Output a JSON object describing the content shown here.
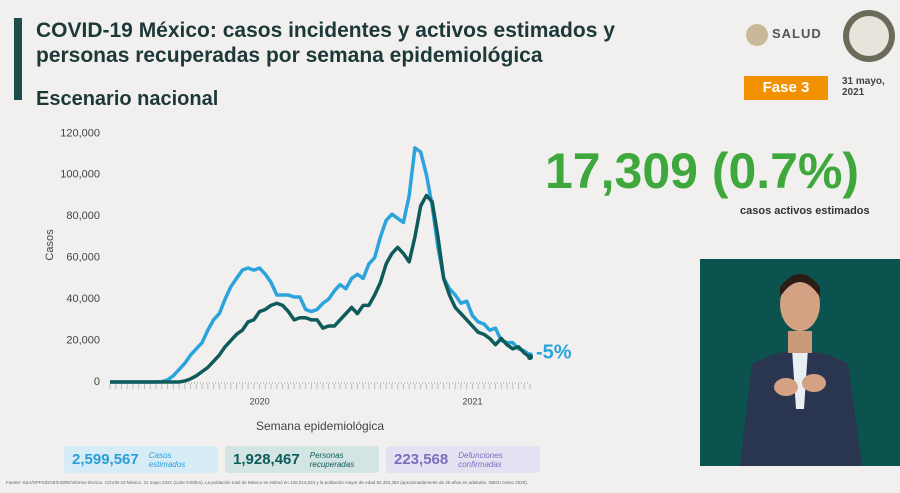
{
  "header": {
    "title": "COVID-19 México: casos incidentes y activos estimados y personas recuperadas por semana epidemiológica",
    "subtitle": "Escenario nacional",
    "ministry": "SALUD",
    "phase": "Fase 3",
    "date": "31 mayo, 2021"
  },
  "highlight": {
    "value": "17,309 (0.7%)",
    "caption": "casos activos estimados"
  },
  "stats": [
    {
      "value": "2,599,567",
      "label": "Casos estimados"
    },
    {
      "value": "1,928,467",
      "label": "Personas recuperadas"
    },
    {
      "value": "223,568",
      "label": "Defunciones confirmadas"
    }
  ],
  "footnote": "Fuente: SSA/SPPS/DGE/InDRE/Informe técnico. COVID-19 México. 31 mayo 2021 (corte 9:00hrs). La población total de México se estimó en 126,014,024 y la población mayor de edad 92,453,383 (aproximadamente de 20 años en adelante, INEGI censo 2020).",
  "chart_data": {
    "type": "line",
    "ylabel": "Casos",
    "xlabel": "Semana epidemiológica",
    "annotation": "-5%",
    "categories": [
      null,
      null,
      null,
      null,
      null,
      null,
      null,
      null,
      null,
      null,
      null,
      null,
      null,
      null,
      null,
      null,
      null,
      null,
      null,
      null,
      null,
      null,
      null,
      null,
      null,
      null,
      "2020",
      null,
      null,
      null,
      null,
      null,
      null,
      null,
      null,
      null,
      null,
      null,
      null,
      null,
      null,
      null,
      null,
      null,
      null,
      null,
      null,
      null,
      null,
      null,
      null,
      null,
      null,
      null,
      null,
      null,
      null,
      null,
      null,
      null,
      null,
      null,
      null,
      "2021",
      null,
      null,
      null,
      null,
      null,
      null,
      null,
      null,
      null,
      null
    ],
    "series": [
      {
        "color": "#2ba3dd",
        "values": [
          0,
          0,
          0,
          0,
          0,
          0,
          0,
          0,
          0,
          200,
          1000,
          3000,
          6000,
          9000,
          13000,
          16000,
          19000,
          25000,
          30000,
          33000,
          40000,
          46000,
          50000,
          54000,
          55000,
          54000,
          55000,
          52000,
          48000,
          42000,
          42000,
          42000,
          41000,
          41000,
          35000,
          34000,
          35000,
          38000,
          40000,
          44000,
          47000,
          45000,
          50000,
          52000,
          50000,
          57000,
          60000,
          70000,
          78000,
          81000,
          79000,
          77000,
          90000,
          113000,
          111000,
          100000,
          85000,
          65000,
          50000,
          45000,
          42000,
          38000,
          39000,
          32000,
          29000,
          28000,
          25000,
          26000,
          20000,
          19000,
          19000,
          16000,
          15000,
          13000
        ]
      },
      {
        "color": "#0f5b5b",
        "values": [
          0,
          0,
          0,
          0,
          0,
          0,
          0,
          0,
          0,
          0,
          0,
          0,
          0,
          500,
          1500,
          3000,
          5000,
          7000,
          10000,
          13000,
          17000,
          20000,
          23000,
          25000,
          29000,
          30000,
          34000,
          35000,
          37000,
          38000,
          37000,
          34000,
          30000,
          31000,
          31000,
          30000,
          30000,
          26000,
          27000,
          27000,
          30000,
          33000,
          36000,
          33000,
          37000,
          37000,
          42000,
          48000,
          57000,
          62000,
          65000,
          62000,
          58000,
          70000,
          85000,
          90000,
          87000,
          70000,
          50000,
          42000,
          36000,
          33000,
          30000,
          27000,
          24000,
          23000,
          21000,
          18000,
          21000,
          18000,
          16000,
          17000,
          14000,
          12000
        ]
      }
    ],
    "ylim": [
      0,
      125000
    ],
    "yticks": [
      0,
      {
        "value": 20000,
        "label": "20,000"
      },
      {
        "value": 40000,
        "label": "40,000"
      },
      {
        "value": 60000,
        "label": "60,000"
      },
      {
        "value": 80000,
        "label": "80,000"
      },
      {
        "value": 100000,
        "label": "100,000"
      },
      {
        "value": 120000,
        "label": "120,000"
      }
    ],
    "grid": false
  }
}
